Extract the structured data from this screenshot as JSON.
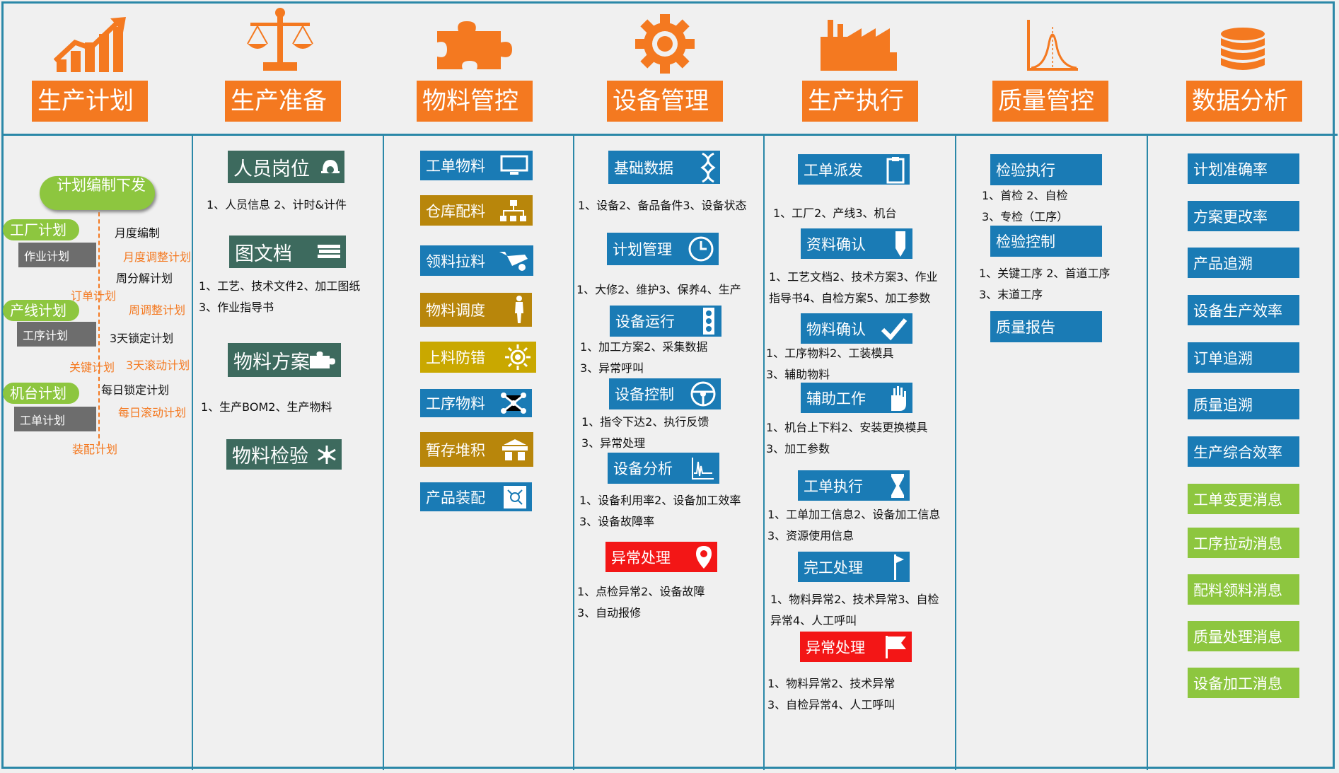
{
  "colors": {
    "border": "#2b88a8",
    "orange": "#f47920",
    "dark_green": "#3d6a5e",
    "blue": "#1a7bb5",
    "gold": "#b8860b",
    "yellow": "#c9a800",
    "red": "#f31616",
    "green": "#8dc63f",
    "gray": "#6d6d6d"
  },
  "headers": [
    {
      "title": "生产计划",
      "icon": "growth-chart-icon"
    },
    {
      "title": "生产准备",
      "icon": "balance-scale-icon"
    },
    {
      "title": "物料管控",
      "icon": "puzzle-icon"
    },
    {
      "title": "设备管理",
      "icon": "gear-icon"
    },
    {
      "title": "生产执行",
      "icon": "factory-icon"
    },
    {
      "title": "质量管控",
      "icon": "bell-curve-icon"
    },
    {
      "title": "数据分析",
      "icon": "database-icon"
    }
  ],
  "plan": {
    "main": "计划编制下发",
    "factory": "工厂计划",
    "job": "作业计划",
    "line": "产线计划",
    "process": "工序计划",
    "machine": "机台计划",
    "workorder": "工单计划",
    "monthly": "月度编制",
    "monthly_adj": "月度调整计划",
    "weekly": "周分解计划",
    "order": "订单计划",
    "weekly_adj": "周调整计划",
    "lock3": "3天锁定计划",
    "key": "关键计划",
    "roll3": "3天滚动计划",
    "daily_lock": "每日锁定计划",
    "daily_roll": "每日滚动计划",
    "assembly": "装配计划"
  },
  "prep": {
    "staff": "人员岗位",
    "staff_desc": "1、人员信息 2、计时&计件",
    "docs": "图文档",
    "docs_desc1": "1、工艺、技术文件2、加工图纸",
    "docs_desc2": "3、作业指导书",
    "material": "物料方案",
    "material_desc": "1、生产BOM2、生产物料",
    "inspect": "物料检验"
  },
  "materials": [
    {
      "label": "工单物料",
      "icon": "monitor-icon"
    },
    {
      "label": "仓库配料",
      "icon": "org-chart-icon"
    },
    {
      "label": "领料拉料",
      "icon": "wheelbarrow-icon"
    },
    {
      "label": "物料调度",
      "icon": "worker-icon"
    },
    {
      "label": "上料防错",
      "icon": "sun-gear-icon"
    },
    {
      "label": "工序物料",
      "icon": "network-icon"
    },
    {
      "label": "暂存堆积",
      "icon": "warehouse-icon"
    },
    {
      "label": "产品装配",
      "icon": "assembly-icon"
    }
  ],
  "equipment": {
    "basic": "基础数据",
    "basic_desc": "1、设备2、备品备件3、设备状态",
    "plan": "计划管理",
    "plan_desc": "1、大修2、维护3、保养4、生产",
    "run": "设备运行",
    "run_desc1": "1、加工方案2、采集数据",
    "run_desc2": "3、异常呼叫",
    "control": "设备控制",
    "control_desc1": "1、指令下达2、执行反馈",
    "control_desc2": "3、异常处理",
    "analysis": "设备分析",
    "analysis_desc1": "1、设备利用率2、设备加工效率",
    "analysis_desc2": "3、设备故障率",
    "exception": "异常处理",
    "exception_desc1": "1、点检异常2、设备故障",
    "exception_desc2": "3、自动报修"
  },
  "execution": {
    "dispatch": "工单派发",
    "dispatch_desc": "1、工厂2、产线3、机台",
    "docs": "资料确认",
    "docs_desc1": "1、工艺文档2、技术方案3、作业",
    "docs_desc2": "指导书4、自检方案5、加工参数",
    "mat": "物料确认",
    "mat_desc1": "1、工序物料2、工装模具",
    "mat_desc2": "3、辅助物料",
    "aux": "辅助工作",
    "aux_desc1": "1、机台上下料2、安装更换模具",
    "aux_desc2": "3、加工参数",
    "exec": "工单执行",
    "exec_desc1": "1、工单加工信息2、设备加工信息",
    "exec_desc2": "3、资源使用信息",
    "done": "完工处理",
    "done_desc1": "1、物料异常2、技术异常3、自检",
    "done_desc2": "异常4、人工呼叫",
    "exception": "异常处理",
    "exception_desc1": "1、物料异常2、技术异常",
    "exception_desc2": "3、自检异常4、人工呼叫"
  },
  "quality": {
    "exec": "检验执行",
    "exec_desc1": "1、首检 2、自检",
    "exec_desc2": "3、专检（工序）",
    "ctrl": "检验控制",
    "ctrl_desc1": "1、关键工序 2、首道工序",
    "ctrl_desc2": "3、末道工序",
    "report": "质量报告"
  },
  "analysis": [
    {
      "label": "计划准确率",
      "color": "blue"
    },
    {
      "label": "方案更改率",
      "color": "blue"
    },
    {
      "label": "产品追溯",
      "color": "blue"
    },
    {
      "label": "设备生产效率",
      "color": "blue"
    },
    {
      "label": "订单追溯",
      "color": "blue"
    },
    {
      "label": "质量追溯",
      "color": "blue"
    },
    {
      "label": "生产综合效率",
      "color": "blue"
    },
    {
      "label": "工单变更消息",
      "color": "green"
    },
    {
      "label": "工序拉动消息",
      "color": "green"
    },
    {
      "label": "配料领料消息",
      "color": "green"
    },
    {
      "label": "质量处理消息",
      "color": "green"
    },
    {
      "label": "设备加工消息",
      "color": "green"
    }
  ]
}
